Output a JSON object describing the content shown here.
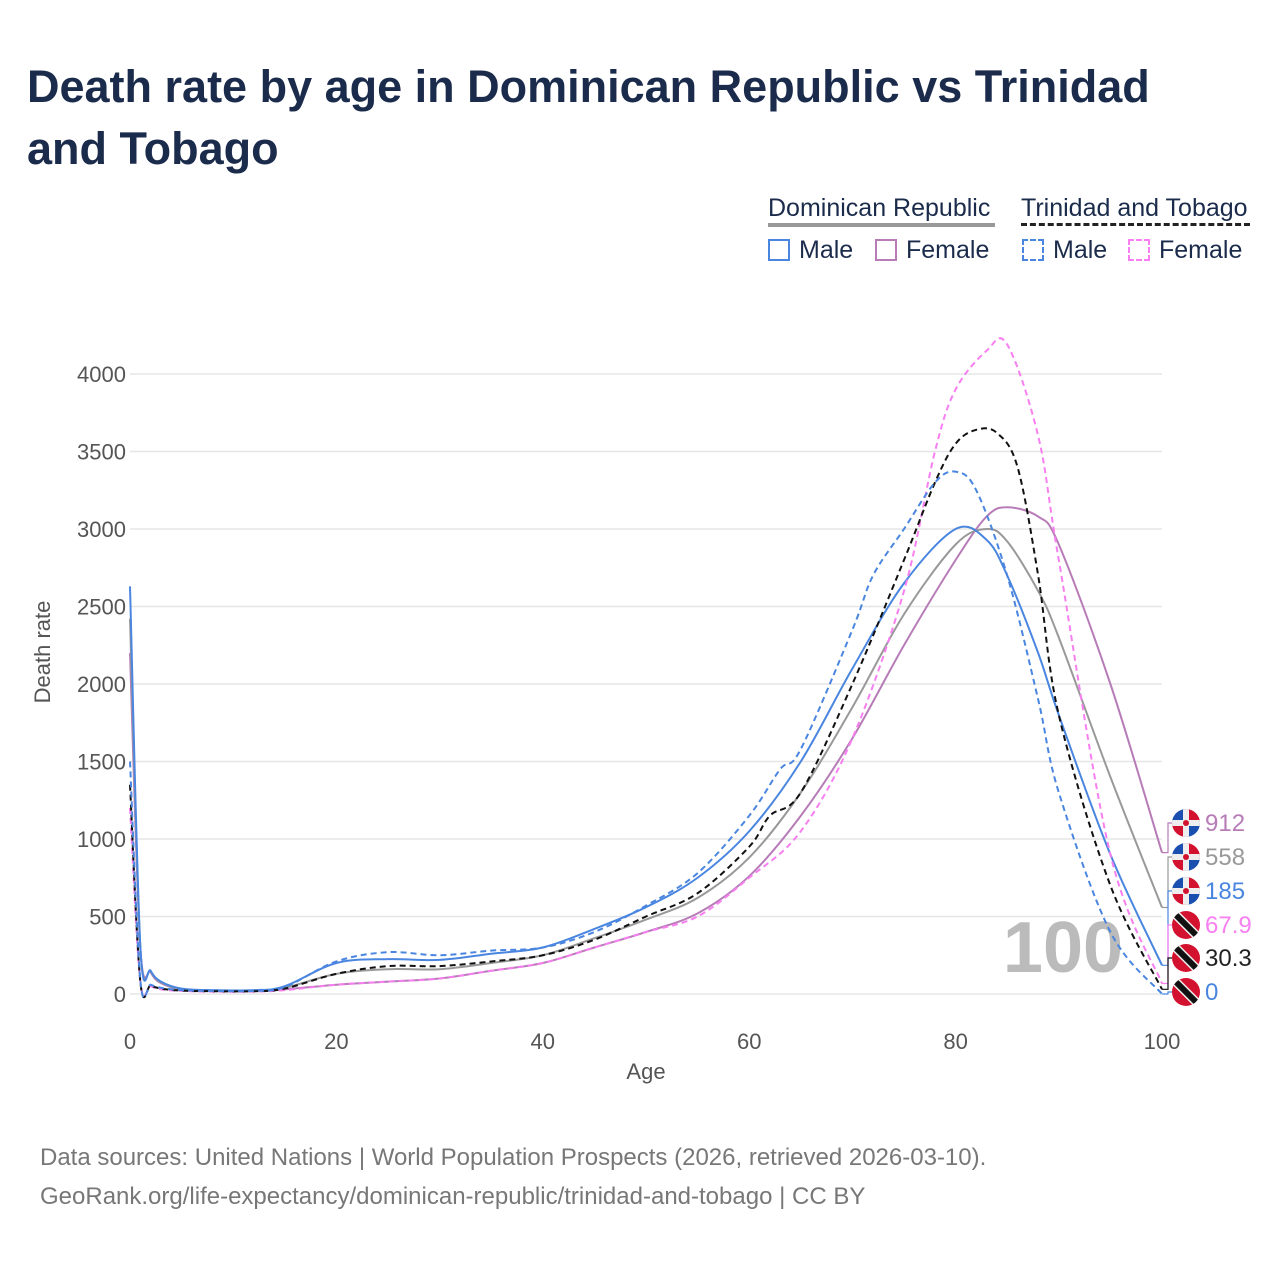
{
  "title": "Death rate by age in Dominican Republic vs Trinidad and Tobago",
  "legend": {
    "group1": "Dominican Republic",
    "group2": "Trinidad and Tobago",
    "male": "Male",
    "female": "Female"
  },
  "source_line1": "Data sources: United Nations | World Population Prospects (2026, retrieved 2026-03-10).",
  "source_line2": "GeoRank.org/life-expectancy/dominican-republic/trinidad-and-tobago | CC BY",
  "watermark": "100",
  "chart_data": {
    "type": "line",
    "xlabel": "Age",
    "ylabel": "Death rate",
    "xlim": [
      0,
      100
    ],
    "ylim": [
      0,
      4300
    ],
    "xticks": [
      "0",
      "20",
      "40",
      "60",
      "80",
      "100"
    ],
    "yticks": [
      "0",
      "500",
      "1000",
      "1500",
      "2000",
      "2500",
      "3000",
      "3500",
      "4000"
    ],
    "series": [
      {
        "name": "Dominican Republic Female",
        "color": "#b77cb7",
        "dash": false,
        "end_label": "912",
        "x": [
          0,
          1,
          2,
          3,
          5,
          8,
          12,
          15,
          20,
          25,
          30,
          35,
          40,
          45,
          50,
          55,
          60,
          65,
          70,
          75,
          80,
          83,
          85,
          88,
          90,
          95,
          100
        ],
        "y": [
          2200,
          300,
          140,
          70,
          30,
          20,
          20,
          30,
          60,
          80,
          100,
          150,
          200,
          300,
          400,
          520,
          760,
          1150,
          1650,
          2250,
          2800,
          3080,
          3140,
          3080,
          2900,
          2000,
          912
        ]
      },
      {
        "name": "Dominican Republic Total",
        "color": "#999999",
        "dash": false,
        "end_label": "558",
        "x": [
          0,
          1,
          2,
          3,
          5,
          8,
          12,
          15,
          20,
          25,
          30,
          35,
          40,
          45,
          50,
          55,
          60,
          65,
          70,
          75,
          80,
          83,
          85,
          88,
          90,
          95,
          100
        ],
        "y": [
          2420,
          300,
          145,
          75,
          32,
          22,
          22,
          40,
          130,
          160,
          160,
          200,
          250,
          360,
          480,
          620,
          880,
          1300,
          1850,
          2450,
          2900,
          3000,
          2920,
          2600,
          2300,
          1400,
          558
        ]
      },
      {
        "name": "Dominican Republic Male",
        "color": "#4a86e0",
        "dash": false,
        "end_label": "185",
        "x": [
          0,
          1,
          2,
          3,
          5,
          8,
          12,
          15,
          20,
          25,
          30,
          35,
          40,
          45,
          50,
          55,
          60,
          65,
          70,
          75,
          80,
          83,
          85,
          88,
          90,
          95,
          100
        ],
        "y": [
          2630,
          310,
          150,
          80,
          35,
          25,
          25,
          50,
          200,
          225,
          220,
          260,
          300,
          420,
          560,
          750,
          1050,
          1500,
          2100,
          2650,
          3000,
          2930,
          2700,
          2200,
          1800,
          900,
          185
        ]
      },
      {
        "name": "Trinidad and Tobago Female",
        "color": "#f77ff0",
        "dash": true,
        "end_label": "67.9",
        "x": [
          0,
          1,
          2,
          3,
          5,
          8,
          12,
          15,
          20,
          25,
          30,
          35,
          40,
          45,
          50,
          55,
          60,
          65,
          70,
          75,
          78,
          80,
          83,
          85,
          88,
          90,
          95,
          100
        ],
        "y": [
          1200,
          80,
          50,
          30,
          20,
          15,
          15,
          25,
          60,
          80,
          100,
          150,
          200,
          300,
          400,
          500,
          750,
          1050,
          1650,
          2600,
          3500,
          3900,
          4150,
          4190,
          3600,
          2800,
          900,
          67.9
        ]
      },
      {
        "name": "Trinidad and Tobago Total",
        "color": "#111111",
        "dash": true,
        "end_label": "30.3",
        "x": [
          0,
          1,
          2,
          3,
          5,
          8,
          12,
          15,
          20,
          25,
          30,
          35,
          40,
          45,
          50,
          55,
          60,
          62,
          65,
          70,
          75,
          78,
          80,
          82,
          84,
          86,
          88,
          90,
          95,
          100
        ],
        "y": [
          1350,
          80,
          55,
          35,
          22,
          18,
          18,
          35,
          130,
          180,
          180,
          210,
          250,
          350,
          500,
          650,
          950,
          1150,
          1300,
          2000,
          2800,
          3300,
          3550,
          3640,
          3620,
          3400,
          2700,
          1800,
          700,
          30.3
        ]
      },
      {
        "name": "Trinidad and Tobago Male",
        "color": "#4a86e0",
        "dash": true,
        "end_label": "0",
        "x": [
          0,
          1,
          2,
          3,
          5,
          8,
          12,
          15,
          20,
          25,
          30,
          35,
          40,
          45,
          50,
          55,
          60,
          63,
          65,
          70,
          72,
          75,
          78,
          80,
          82,
          85,
          88,
          90,
          95,
          100
        ],
        "y": [
          1500,
          90,
          60,
          40,
          25,
          20,
          20,
          45,
          210,
          270,
          250,
          280,
          300,
          400,
          570,
          780,
          1150,
          1450,
          1580,
          2350,
          2700,
          3000,
          3300,
          3370,
          3250,
          2700,
          1900,
          1300,
          400,
          0
        ]
      }
    ]
  }
}
